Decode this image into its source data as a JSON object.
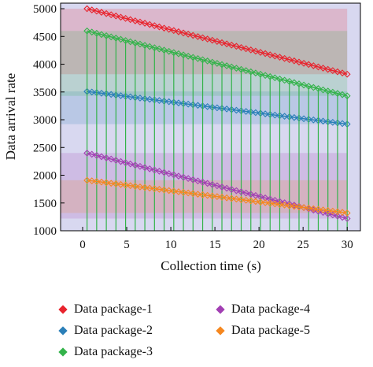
{
  "chart_data": {
    "type": "line",
    "xlabel": "Collection time (s)",
    "ylabel": "Data arrival rate",
    "xlim": [
      -2.5,
      31.5
    ],
    "ylim": [
      1000,
      5100
    ],
    "xticks": [
      0,
      5,
      10,
      15,
      20,
      25,
      30
    ],
    "yticks": [
      1000,
      1500,
      2000,
      2500,
      3000,
      3500,
      4000,
      4500,
      5000
    ],
    "grid": false,
    "legend_position": "bottom",
    "background": "#d8d8f0",
    "x": [
      0.5,
      30
    ],
    "series": [
      {
        "name": "Data package-1",
        "color": "#e8232d",
        "start": 5000,
        "end": 3820
      },
      {
        "name": "Data package-2",
        "color": "#2a7fb8",
        "start": 3510,
        "end": 2920
      },
      {
        "name": "Data package-3",
        "color": "#33b34a",
        "start": 4600,
        "end": 3430
      },
      {
        "name": "Data package-4",
        "color": "#a23fb3",
        "start": 2400,
        "end": 1220
      },
      {
        "name": "Data package-5",
        "color": "#f5871f",
        "start": 1910,
        "end": 1320
      }
    ]
  }
}
